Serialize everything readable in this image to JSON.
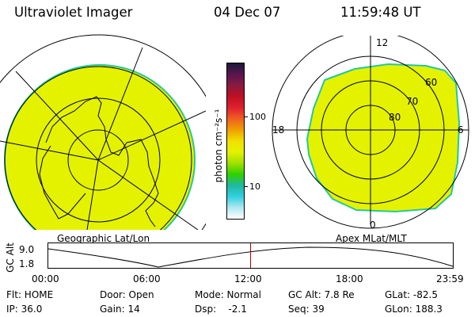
{
  "header": {
    "instrument": "Ultraviolet Imager",
    "date": "04 Dec 07",
    "time": "11:59:48 UT"
  },
  "colors": {
    "image_fill": "#e4f200",
    "image_edge": "#22c8a0",
    "background": "#ffffff",
    "marker_line": "#c00000"
  },
  "colorbar": {
    "unit_label": "photon cm⁻²s⁻¹",
    "ticks": [
      "100",
      "10"
    ],
    "scale": "log",
    "colors_top_to_bottom": [
      "#1a1a3a",
      "#5a1550",
      "#8a1a40",
      "#c01020",
      "#e02030",
      "#f06020",
      "#f0a000",
      "#f0e000",
      "#e4f200",
      "#a0e000",
      "#30d000",
      "#20b8a0",
      "#30d0e0",
      "#b0e8f0",
      "#ffffff"
    ]
  },
  "left_panel": {
    "caption": "Geographic Lat/Lon"
  },
  "right_panel": {
    "caption": "Apex MLat/MLT",
    "mlt_labels": {
      "top": "12",
      "left": "18",
      "right": "6",
      "bottom": "0"
    },
    "lat_labels": [
      "60",
      "70",
      "80"
    ]
  },
  "altitude_plot": {
    "ylabel": "GC Alt",
    "y_ticks": [
      "9.0",
      "1.8"
    ],
    "x_ticks": [
      "00:00",
      "06:00",
      "12:00",
      "18:00",
      "23:59"
    ],
    "current_time_fraction": 0.5
  },
  "status": {
    "flt": "Flt: HOME",
    "ip": "IP: 36.0",
    "door": "Door: Open",
    "gain": "Gain: 14",
    "mode": "Mode: Normal",
    "dsp": "Dsp:    -2.1",
    "gc_alt": "GC Alt: 7.8 Re",
    "seq": "Seq: 39",
    "glat": "GLat: -82.5",
    "glon": "GLon: 188.3"
  }
}
